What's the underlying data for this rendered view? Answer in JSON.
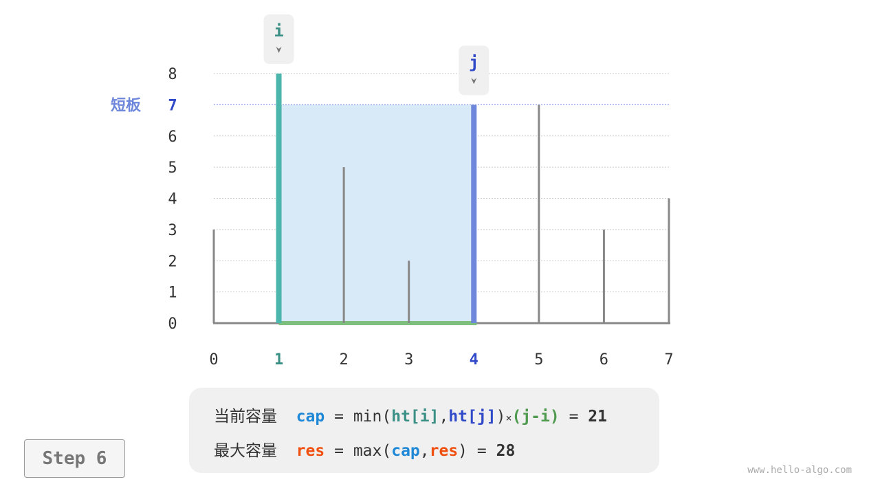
{
  "chart_data": {
    "type": "bar",
    "categories": [
      "0",
      "1",
      "2",
      "3",
      "4",
      "5",
      "6",
      "7"
    ],
    "values": [
      3,
      8,
      5,
      2,
      7,
      7,
      3,
      4
    ],
    "y_ticks": [
      "0",
      "1",
      "2",
      "3",
      "4",
      "5",
      "6",
      "7",
      "8"
    ],
    "ylim": [
      0,
      8
    ],
    "grid": true,
    "pointer_i": {
      "label": "i",
      "index": 1
    },
    "pointer_j": {
      "label": "j",
      "index": 4
    },
    "short_board": {
      "label": "短板",
      "value": 7
    },
    "colors": {
      "bar": "#888888",
      "i": "#4db6ac",
      "j": "#6f87db",
      "area": "#d8eaf8",
      "base": "#7cbf7c",
      "i_text": "#3a8f85",
      "j_text": "#3049c8",
      "short": "#6f87db"
    }
  },
  "formula": {
    "line1": {
      "label": "当前容量",
      "var": "cap",
      "eq": "=",
      "fn": "min(",
      "a": "ht[i]",
      "comma": ",",
      "b": "ht[j]",
      "close": ")",
      "times": "×",
      "c": "(j-i)",
      "eq2": "=",
      "result": "21"
    },
    "line2": {
      "label": "最大容量",
      "var": "res",
      "eq": "=",
      "fn": "max(",
      "a": "cap",
      "comma": ",",
      "b": "res",
      "close": ")",
      "eq2": "=",
      "result": "28"
    },
    "colors": {
      "cap": "#1e88d6",
      "res": "#f0500f",
      "hti": "#3a8f85",
      "htj": "#3049c8",
      "ji": "#4e9a4e"
    }
  },
  "step_label": "Step 6",
  "watermark": "www.hello-algo.com"
}
